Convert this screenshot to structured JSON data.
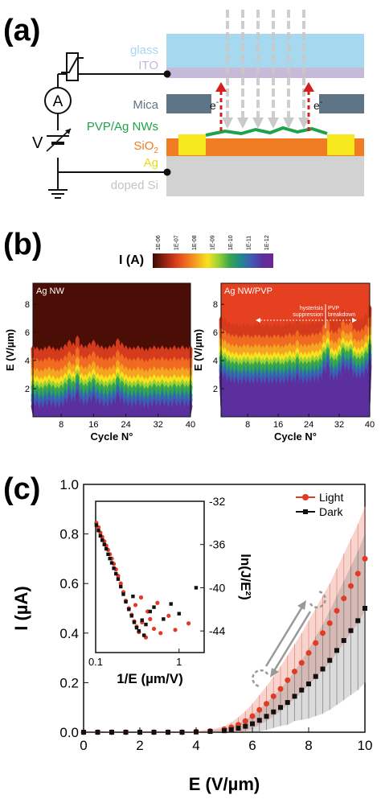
{
  "panel_labels": {
    "a": "(a)",
    "b": "(b)",
    "c": "(c)"
  },
  "schematic": {
    "layers": {
      "glass": "glass",
      "ito": "ITO",
      "mica": "Mica",
      "pvp": "PVP/Ag NWs",
      "sio2": "SiO",
      "sio2_sub": "2",
      "ag": "Ag",
      "si": "doped Si"
    },
    "ammeter": "A",
    "voltage": "V",
    "electron": "e",
    "electron_sup": "-",
    "colors": {
      "glass": "#a6d8f0",
      "ito": "#c7bad9",
      "mica": "#5f7484",
      "pvp": "#1fa34a",
      "sio2": "#f07c23",
      "ag": "#f6ea1e",
      "si": "#d2d2d2",
      "arrow": "#d41f1f"
    }
  },
  "colorbar": {
    "label": "I (A)",
    "ticks": [
      "1E-06",
      "1E-07",
      "1E-08",
      "1E-09",
      "1E-10",
      "1E-11",
      "1E-12"
    ],
    "colors": [
      "#3d0a05",
      "#8a1f10",
      "#d43a1c",
      "#f06a22",
      "#f5a422",
      "#f8e21e",
      "#9ad234",
      "#3aa64b",
      "#1f8a8a",
      "#3f5bb5",
      "#5c2f9e",
      "#6e2590"
    ]
  },
  "chart_data": [
    {
      "type": "heatmap",
      "title": "Ag NW",
      "xlabel": "Cycle N°",
      "ylabel": "E (V/µm)",
      "xticks": [
        "8",
        "16",
        "24",
        "32",
        "40"
      ],
      "yticks": [
        "2",
        "4",
        "6",
        "8"
      ],
      "xlim": [
        1,
        40
      ],
      "ylim": [
        0,
        9.5
      ],
      "cycles": [
        1,
        2,
        3,
        4,
        5,
        6,
        7,
        8,
        9,
        10,
        11,
        12,
        13,
        14,
        15,
        16,
        17,
        18,
        19,
        20,
        21,
        22,
        23,
        24,
        25,
        26,
        27,
        28,
        29,
        30,
        31,
        32,
        33,
        34,
        35,
        36,
        37,
        38,
        39,
        40
      ],
      "onset_field": [
        1.9,
        1.8,
        1.7,
        1.8,
        1.9,
        1.8,
        1.7,
        1.8,
        2.0,
        2.3,
        2.1,
        2.6,
        2.0,
        1.9,
        2.1,
        2.3,
        2.0,
        1.9,
        1.8,
        1.9,
        2.0,
        2.4,
        2.1,
        1.9,
        1.8,
        1.8,
        1.9,
        1.8,
        1.7,
        1.8,
        1.9,
        1.8,
        1.9,
        1.8,
        1.8,
        1.9,
        1.8,
        1.9,
        1.8,
        1.9
      ]
    },
    {
      "type": "heatmap",
      "title": "Ag NW/PVP",
      "xlabel": "Cycle N°",
      "ylabel": "E (V/µm)",
      "xticks": [
        "8",
        "16",
        "24",
        "32",
        "40"
      ],
      "yticks": [
        "2",
        "4",
        "6",
        "8"
      ],
      "xlim": [
        1,
        40
      ],
      "ylim": [
        0,
        9.5
      ],
      "annotations": [
        "hysterisis",
        "suppression",
        "PVP",
        "breakdown"
      ],
      "cycles": [
        1,
        2,
        3,
        4,
        5,
        6,
        7,
        8,
        9,
        10,
        11,
        12,
        13,
        14,
        15,
        16,
        17,
        18,
        19,
        20,
        21,
        22,
        23,
        24,
        25,
        26,
        27,
        28,
        29,
        30,
        31,
        32,
        33,
        34,
        35,
        36,
        37,
        38,
        39,
        40
      ],
      "onset_field": [
        4.0,
        3.8,
        3.6,
        3.5,
        3.5,
        3.4,
        3.5,
        3.5,
        3.4,
        3.5,
        3.5,
        3.4,
        3.5,
        3.4,
        3.5,
        3.5,
        3.4,
        3.5,
        3.6,
        3.5,
        3.8,
        3.5,
        3.5,
        3.5,
        3.6,
        3.6,
        3.7,
        4.2,
        4.5,
        3.8,
        3.7,
        4.0,
        4.5,
        4.3,
        4.4,
        3.9,
        3.8,
        3.9,
        4.2,
        4.8
      ]
    },
    {
      "type": "scatter",
      "xlabel": "E (V/µm)",
      "ylabel": "I (µA)",
      "xlim": [
        0,
        10
      ],
      "ylim": [
        0,
        1.0
      ],
      "xticks": [
        "0",
        "2",
        "4",
        "6",
        "8",
        "10"
      ],
      "yticks": [
        "0.0",
        "0.2",
        "0.4",
        "0.6",
        "0.8",
        "1.0"
      ],
      "legend_position": "top-right",
      "series": [
        {
          "name": "Light",
          "color": "#e03b24",
          "x": [
            0,
            0.5,
            1,
            1.5,
            2,
            2.5,
            3,
            3.5,
            4,
            4.5,
            5,
            5.25,
            5.5,
            5.75,
            6,
            6.25,
            6.5,
            6.75,
            7,
            7.25,
            7.5,
            7.75,
            8,
            8.25,
            8.5,
            8.75,
            9,
            9.25,
            9.5,
            9.75,
            10
          ],
          "y": [
            0,
            0,
            0,
            0,
            0,
            0,
            0,
            0,
            0.002,
            0.005,
            0.012,
            0.02,
            0.03,
            0.045,
            0.065,
            0.09,
            0.115,
            0.145,
            0.175,
            0.21,
            0.245,
            0.28,
            0.32,
            0.36,
            0.4,
            0.44,
            0.49,
            0.54,
            0.59,
            0.64,
            0.7
          ],
          "err": [
            0,
            0,
            0,
            0,
            0,
            0,
            0,
            0,
            0.003,
            0.006,
            0.012,
            0.02,
            0.03,
            0.04,
            0.05,
            0.06,
            0.07,
            0.08,
            0.09,
            0.1,
            0.11,
            0.12,
            0.13,
            0.14,
            0.15,
            0.16,
            0.17,
            0.18,
            0.19,
            0.2,
            0.21
          ]
        },
        {
          "name": "Dark",
          "color": "#111111",
          "x": [
            0,
            0.5,
            1,
            1.5,
            2,
            2.5,
            3,
            3.5,
            4,
            4.5,
            5,
            5.25,
            5.5,
            5.75,
            6,
            6.25,
            6.5,
            6.75,
            7,
            7.25,
            7.5,
            7.75,
            8,
            8.25,
            8.5,
            8.75,
            9,
            9.25,
            9.5,
            9.75,
            10
          ],
          "y": [
            0,
            0,
            0,
            0,
            0,
            0,
            0,
            0,
            0.001,
            0.003,
            0.006,
            0.01,
            0.016,
            0.024,
            0.034,
            0.048,
            0.064,
            0.082,
            0.1,
            0.12,
            0.145,
            0.17,
            0.195,
            0.225,
            0.255,
            0.29,
            0.33,
            0.37,
            0.41,
            0.45,
            0.5
          ],
          "err": [
            0,
            0,
            0,
            0,
            0,
            0,
            0,
            0,
            0.002,
            0.004,
            0.008,
            0.012,
            0.018,
            0.026,
            0.035,
            0.045,
            0.055,
            0.065,
            0.075,
            0.09,
            0.1,
            0.12,
            0.14,
            0.16,
            0.18,
            0.2,
            0.22,
            0.24,
            0.26,
            0.28,
            0.3
          ]
        }
      ]
    },
    {
      "type": "scatter",
      "xlabel": "1/E (µm/V)",
      "ylabel": "ln(J/E²)",
      "xscale": "log",
      "xlim": [
        0.1,
        2
      ],
      "ylim": [
        -46,
        -32
      ],
      "xticks": [
        "0.1",
        "1"
      ],
      "yticks": [
        "-32",
        "-36",
        "-40",
        "-44"
      ],
      "series": [
        {
          "name": "Light",
          "color": "#e03b24",
          "x": [
            0.102,
            0.108,
            0.114,
            0.12,
            0.127,
            0.134,
            0.141,
            0.148,
            0.156,
            0.165,
            0.175,
            0.186,
            0.2,
            0.215,
            0.23,
            0.25,
            0.27,
            0.29,
            0.31,
            0.33,
            0.36,
            0.4,
            0.45,
            0.5,
            0.6,
            0.75,
            0.9,
            1.3,
            0.3,
            0.35,
            0.42,
            0.55
          ],
          "y": [
            -34.0,
            -34.4,
            -34.9,
            -35.3,
            -35.7,
            -36.1,
            -36.5,
            -36.9,
            -37.3,
            -37.8,
            -38.3,
            -38.9,
            -39.6,
            -40.4,
            -41.2,
            -41.9,
            -42.5,
            -43.1,
            -43.6,
            -44.1,
            -43.2,
            -44.6,
            -42.9,
            -43.8,
            -44.2,
            -42.6,
            -43.9,
            -43.3,
            -41.6,
            -40.9,
            -42.2,
            -41.4
          ]
        },
        {
          "name": "Dark",
          "color": "#111111",
          "x": [
            0.102,
            0.108,
            0.114,
            0.12,
            0.127,
            0.134,
            0.141,
            0.148,
            0.156,
            0.165,
            0.175,
            0.186,
            0.2,
            0.215,
            0.23,
            0.25,
            0.27,
            0.29,
            0.31,
            0.33,
            0.36,
            0.4,
            0.45,
            0.5,
            0.65,
            0.8,
            1.0,
            1.6,
            0.38,
            0.28
          ],
          "y": [
            -34.2,
            -34.7,
            -35.2,
            -35.6,
            -36.0,
            -36.4,
            -36.9,
            -37.3,
            -37.7,
            -38.2,
            -38.7,
            -39.2,
            -39.9,
            -40.6,
            -41.3,
            -42.0,
            -42.6,
            -43.2,
            -43.7,
            -44.0,
            -43.0,
            -43.4,
            -42.2,
            -41.8,
            -42.9,
            -41.5,
            -42.4,
            -40.0,
            -44.4,
            -40.8
          ]
        }
      ]
    }
  ]
}
